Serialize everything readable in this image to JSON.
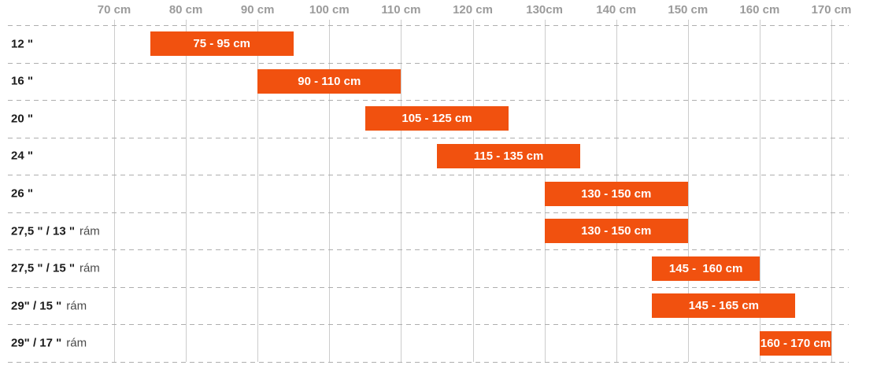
{
  "chart_data": {
    "type": "bar",
    "variant": "horizontal-range-bars",
    "title": "",
    "xlabel": "",
    "ylabel": "",
    "grid": {
      "vertical": "solid",
      "horizontal": "dashed"
    },
    "x_axis": {
      "unit": "cm",
      "min": 70,
      "max": 170,
      "ticks": [
        70,
        80,
        90,
        100,
        110,
        120,
        130,
        140,
        150,
        160,
        170
      ],
      "tick_labels": [
        "70 cm",
        "80 cm",
        "90 cm",
        "100 cm",
        "110 cm",
        "120 cm",
        "130cm",
        "140 cm",
        "150 cm",
        "160 cm",
        "170 cm"
      ],
      "position": "top"
    },
    "rows": [
      {
        "label": "12 \"",
        "suffix": "",
        "range": [
          75,
          95
        ],
        "bar_label": "75 - 95 cm"
      },
      {
        "label": "16 \"",
        "suffix": "",
        "range": [
          90,
          110
        ],
        "bar_label": "90 - 110 cm"
      },
      {
        "label": "20 \"",
        "suffix": "",
        "range": [
          105,
          125
        ],
        "bar_label": "105 - 125 cm"
      },
      {
        "label": "24 \"",
        "suffix": "",
        "range": [
          115,
          135
        ],
        "bar_label": "115 - 135 cm"
      },
      {
        "label": "26 \"",
        "suffix": "",
        "range": [
          130,
          150
        ],
        "bar_label": "130 - 150 cm"
      },
      {
        "label": "27,5 \" / 13 \"",
        "suffix": "rám",
        "range": [
          130,
          150
        ],
        "bar_label": "130 - 150 cm"
      },
      {
        "label": "27,5 \" / 15 \"",
        "suffix": "rám",
        "range": [
          145,
          160
        ],
        "bar_label": "145 -  160 cm"
      },
      {
        "label": "29\" / 15 \"",
        "suffix": "rám",
        "range": [
          145,
          165
        ],
        "bar_label": "145 - 165 cm"
      },
      {
        "label": "29\" / 17 \"",
        "suffix": "rám",
        "range": [
          160,
          170
        ],
        "bar_label": "160 - 170 cm"
      }
    ],
    "colors": {
      "bar": "#F1510F",
      "bar_text": "#FFFFFF",
      "axis_text": "#9B9B9B",
      "row_label": "#1C1C1C",
      "row_suffix": "#4A4A4A",
      "grid_solid": "#CCCCCC",
      "grid_dashed": "#AEAEAE",
      "background": "#FFFFFF"
    }
  }
}
